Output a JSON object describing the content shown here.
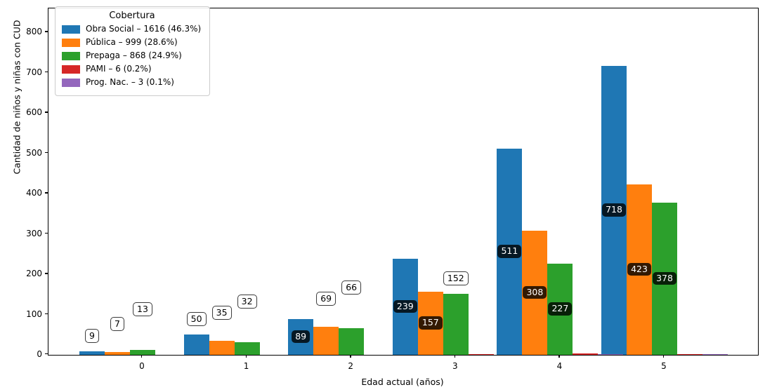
{
  "chart_data": {
    "type": "bar",
    "title": "",
    "legend_title": "Cobertura",
    "legend_position": "upper-left",
    "xlabel": "Edad actual (años)",
    "ylabel": "Cantidad de niños y niñas con CUD",
    "categories": [
      "0",
      "1",
      "2",
      "3",
      "4",
      "5"
    ],
    "yticks": [
      0,
      100,
      200,
      300,
      400,
      500,
      600,
      700,
      800
    ],
    "ylim": [
      0,
      860
    ],
    "grid": false,
    "series": [
      {
        "name": "Obra Social – 1616 (46.3%)",
        "label": "Obra Social",
        "total": 1616,
        "percent": "46.3%",
        "color": "#1f77b4",
        "values": [
          9,
          50,
          89,
          239,
          511,
          718
        ],
        "show_labels": true,
        "labels_inside": [
          false,
          false,
          true,
          true,
          true,
          true
        ]
      },
      {
        "name": "Pública – 999 (28.6%)",
        "label": "Pública",
        "total": 999,
        "percent": "28.6%",
        "color": "#ff7f0e",
        "values": [
          7,
          35,
          69,
          157,
          308,
          423
        ],
        "show_labels": true,
        "labels_inside": [
          false,
          false,
          false,
          true,
          true,
          true
        ]
      },
      {
        "name": "Prepaga – 868 (24.9%)",
        "label": "Prepaga",
        "total": 868,
        "percent": "24.9%",
        "color": "#2ca02c",
        "values": [
          13,
          32,
          66,
          152,
          227,
          378
        ],
        "show_labels": true,
        "labels_inside": [
          false,
          false,
          false,
          false,
          true,
          true
        ]
      },
      {
        "name": "PAMI – 6 (0.2%)",
        "label": "PAMI",
        "total": 6,
        "percent": "0.2%",
        "color": "#d62728",
        "values": [
          0,
          0,
          0,
          2,
          3,
          1
        ],
        "show_labels": false,
        "labels_inside": [
          false,
          false,
          false,
          false,
          false,
          false
        ]
      },
      {
        "name": "Prog. Nac. – 3 (0.1%)",
        "label": "Prog. Nac.",
        "total": 3,
        "percent": "0.1%",
        "color": "#9467bd",
        "values": [
          0,
          0,
          0,
          0,
          1,
          2
        ],
        "show_labels": false,
        "labels_inside": [
          false,
          false,
          false,
          false,
          false,
          false
        ]
      }
    ]
  }
}
